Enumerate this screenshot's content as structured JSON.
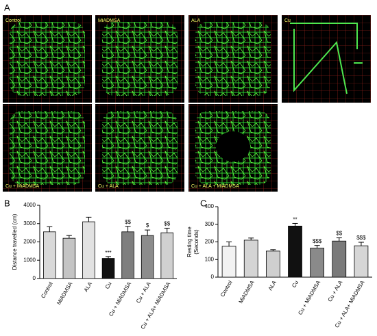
{
  "panel_a": {
    "label": "A",
    "images": [
      "Control",
      "MiADMSA",
      "ALA",
      "Cu",
      "Cu + MiADMSA",
      "Cu + ALA",
      "Cu + ALA + MiADMSA"
    ]
  },
  "chart_data": [
    {
      "type": "bar",
      "label": "B",
      "ylabel": [
        "Distance travelled (cm)"
      ],
      "categories": [
        "Control",
        "MiADMSA",
        "ALA",
        "Cu",
        "Cu + MiADMSA",
        "Cu + ALA",
        "Cu + ALA+ MiADMSA"
      ],
      "values": [
        2550,
        2200,
        3100,
        1100,
        2550,
        2350,
        2500
      ],
      "errors": [
        280,
        150,
        250,
        100,
        300,
        300,
        250
      ],
      "annotations": [
        null,
        null,
        null,
        "***",
        "$$",
        "$",
        "$$"
      ],
      "colors": [
        "#d9d9d9",
        "#c4c4c4",
        "#e2e2e2",
        "#111111",
        "#7f7f7f",
        "#8c8c8c",
        "#d0d0d0"
      ],
      "ylim": [
        0,
        4000
      ],
      "yticks": [
        0,
        1000,
        2000,
        3000,
        4000
      ]
    },
    {
      "type": "bar",
      "label": "C",
      "ylabel": [
        "Resting time",
        "(Seconds)"
      ],
      "categories": [
        "Control",
        "MiADMSA",
        "ALA",
        "Cu",
        "Cu + MiADMSA",
        "Cu + ALA",
        "Cu + ALA+ MiADMSA"
      ],
      "values": [
        175,
        210,
        148,
        290,
        165,
        205,
        178
      ],
      "errors": [
        25,
        12,
        8,
        15,
        15,
        18,
        20
      ],
      "annotations": [
        null,
        null,
        null,
        "**",
        "$$$",
        "$$",
        "$$$"
      ],
      "colors": [
        "#f2f2f2",
        "#d4d4d4",
        "#cfcfcf",
        "#111111",
        "#8a8a8a",
        "#7a7a7a",
        "#d6d6d6"
      ],
      "ylim": [
        0,
        400
      ],
      "yticks": [
        0,
        100,
        200,
        300,
        400
      ]
    }
  ]
}
